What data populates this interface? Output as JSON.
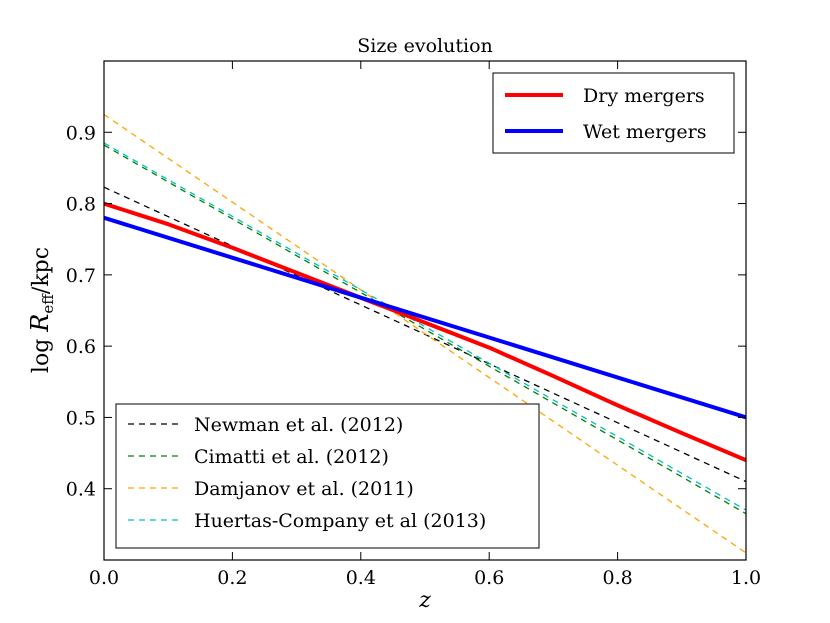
{
  "chart_data": {
    "type": "line",
    "title": "Size evolution",
    "xlabel": "z",
    "ylabel_prefix": "log ",
    "ylabel_symbol": "R",
    "ylabel_subscript": "eff",
    "ylabel_suffix": "/kpc",
    "xlim": [
      0.0,
      1.0
    ],
    "ylim": [
      0.3,
      1.0
    ],
    "xticks": [
      0.0,
      0.2,
      0.4,
      0.6,
      0.8,
      1.0
    ],
    "xtick_labels": [
      "0.0",
      "0.2",
      "0.4",
      "0.6",
      "0.8",
      "1.0"
    ],
    "yticks": [
      0.4,
      0.5,
      0.6,
      0.7,
      0.8,
      0.9
    ],
    "ytick_labels": [
      "0.4",
      "0.5",
      "0.6",
      "0.7",
      "0.8",
      "0.9"
    ],
    "grid": false,
    "series": [
      {
        "name": "Dry mergers",
        "color": "#ff0000",
        "style": "solid",
        "legend_group": "upper",
        "x": [
          0,
          0.1,
          0.2,
          0.3,
          0.4,
          0.5,
          0.6,
          0.7,
          0.8,
          0.9,
          1.0
        ],
        "y": [
          0.8,
          0.771,
          0.738,
          0.703,
          0.668,
          0.633,
          0.598,
          0.558,
          0.517,
          0.478,
          0.44
        ]
      },
      {
        "name": "Wet mergers",
        "color": "#0000ff",
        "style": "solid",
        "legend_group": "upper",
        "x": [
          0,
          1.0
        ],
        "y": [
          0.78,
          0.5
        ]
      },
      {
        "name": "Newman et al. (2012)",
        "color": "#000000",
        "style": "dashed",
        "legend_group": "lower",
        "x": [
          0,
          1.0
        ],
        "y": [
          0.823,
          0.41
        ]
      },
      {
        "name": "Cimatti et al. (2012)",
        "color": "#008000",
        "style": "dashed",
        "legend_group": "lower",
        "x": [
          0,
          1.0
        ],
        "y": [
          0.882,
          0.365
        ]
      },
      {
        "name": "Damjanov et al. (2011)",
        "color": "#ffa500",
        "style": "dashed",
        "legend_group": "lower",
        "x": [
          0,
          1.0
        ],
        "y": [
          0.925,
          0.31
        ]
      },
      {
        "name": "Huertas-Company et al (2013)",
        "color": "#00bfbf",
        "style": "dashed",
        "legend_group": "lower",
        "x": [
          0,
          1.0
        ],
        "y": [
          0.885,
          0.37
        ]
      }
    ],
    "legends": {
      "upper": {
        "placement": "upper right",
        "entries": [
          "Dry mergers",
          "Wet mergers"
        ]
      },
      "lower": {
        "placement": "lower left",
        "entries": [
          "Newman et al. (2012)",
          "Cimatti et al. (2012)",
          "Damjanov et al. (2011)",
          "Huertas-Company et al (2013)"
        ]
      }
    }
  }
}
